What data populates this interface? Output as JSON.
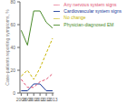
{
  "chart_data": {
    "type": "line",
    "x": [
      2008,
      2009,
      2010,
      2011,
      2012,
      2013
    ],
    "series": [
      {
        "name": "Physician-diagnosed EM",
        "color": "#4a8a2a",
        "line_style": "solid",
        "values": [
          55,
          42,
          72,
          72,
          62,
          57
        ]
      },
      {
        "name": "No change",
        "color": "#c8b400",
        "line_style": "dashed",
        "values": [
          15,
          20,
          12,
          22,
          35,
          48
        ]
      },
      {
        "name": "Cardiovascular system signs",
        "color": "#1a3a99",
        "line_style": "solid",
        "values": [
          2,
          2,
          8,
          8,
          2,
          2
        ]
      },
      {
        "name": "Any nervous system signs",
        "color": "#e05070",
        "line_style": "dashed",
        "values": [
          12,
          5,
          5,
          10,
          12,
          17
        ]
      }
    ],
    "ylabel": "Case-patients reporting symptoms, %",
    "xlim": [
      2007.8,
      2013.2
    ],
    "xticks": [
      2008,
      2009,
      2010,
      2011,
      2012,
      2013
    ],
    "ylim": [
      0,
      80
    ],
    "yticks": [
      0,
      20,
      40,
      60,
      80
    ],
    "legend": "upper right",
    "grid": false
  }
}
